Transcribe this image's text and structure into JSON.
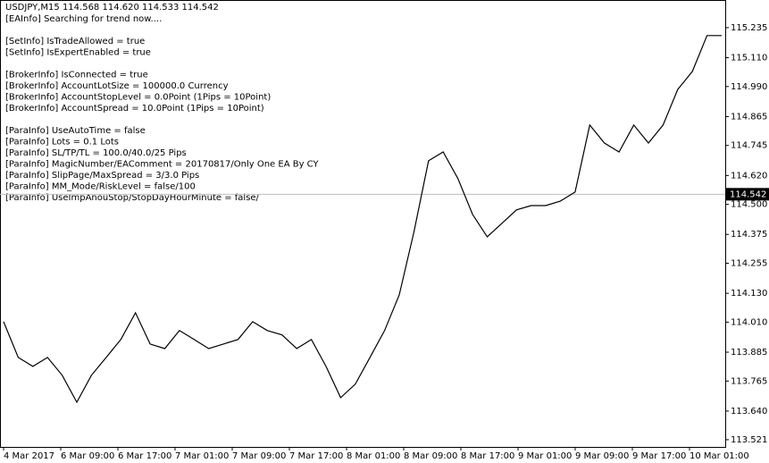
{
  "chart_data": {
    "type": "line",
    "title": "USDJPY,M15 114.568 114.620 114.533 114.542",
    "info_lines": [
      "[EAInfo] Searching for trend now....",
      "",
      "[SetInfo] IsTradeAllowed = true",
      "[SetInfo] IsExpertEnabled = true",
      "",
      "[BrokerInfo] IsConnected = true",
      "[BrokerInfo] AccountLotSize = 100000.0 Currency",
      "[BrokerInfo] AccountStopLevel = 0.0Point (1Pips = 10Point)",
      "[BrokerInfo] AccountSpread = 10.0Point (1Pips = 10Point)",
      "",
      "[ParaInfo] UseAutoTime = false",
      "[ParaInfo] Lots = 0.1 Lots",
      "[ParaInfo] SL/TP/TL = 100.0/40.0/25 Pips",
      "[ParaInfo] MagicNumber/EAComment = 20170817/Only One EA By CY",
      "[ParaInfo] SlipPage/MaxSpread = 3/3.0 Pips",
      "[ParaInfo] MM_Mode/RiskLevel = false/100",
      "[ParaInfo] UseImpAnouStop/StopDayHourMinute = false/"
    ],
    "time_labels": [
      "4 Mar 2017",
      "6 Mar 09:00",
      "6 Mar 17:00",
      "7 Mar 01:00",
      "7 Mar 09:00",
      "7 Mar 17:00",
      "8 Mar 01:00",
      "8 Mar 09:00",
      "8 Mar 17:00",
      "9 Mar 01:00",
      "9 Mar 09:00",
      "9 Mar 17:00",
      "10 Mar 01:00"
    ],
    "series": [
      {
        "name": "USDJPY",
        "color": "#000000",
        "values": [
          114.012,
          113.863,
          113.826,
          113.863,
          113.789,
          113.677,
          113.789,
          113.863,
          113.938,
          114.049,
          113.919,
          113.9,
          113.975,
          113.938,
          113.9,
          113.919,
          113.938,
          114.012,
          113.975,
          113.957,
          113.9,
          113.938,
          113.826,
          113.696,
          113.752,
          113.863,
          113.975,
          114.123,
          114.384,
          114.681,
          114.718,
          114.607,
          114.458,
          114.365,
          114.421,
          114.477,
          114.495,
          114.495,
          114.514,
          114.551,
          114.83,
          114.755,
          114.718,
          114.83,
          114.755,
          114.83,
          114.978,
          115.053,
          115.202,
          115.202
        ]
      }
    ],
    "current_price": 114.542,
    "current_label": "114.542",
    "ylim": [
      113.491,
      115.35
    ],
    "yticks": [
      115.235,
      {
        "value": 115.11,
        "label": "115.110"
      },
      {
        "value": 114.99,
        "label": "114.990"
      },
      114.865,
      114.745,
      {
        "value": 114.62,
        "label": "114.620"
      },
      {
        "value": 114.5,
        "label": "114.500"
      },
      114.375,
      114.255,
      {
        "value": 114.13,
        "label": "114.130"
      },
      {
        "value": 114.01,
        "label": "114.010"
      },
      113.885,
      113.765,
      {
        "value": 113.64,
        "label": "113.640"
      },
      113.521
    ]
  }
}
